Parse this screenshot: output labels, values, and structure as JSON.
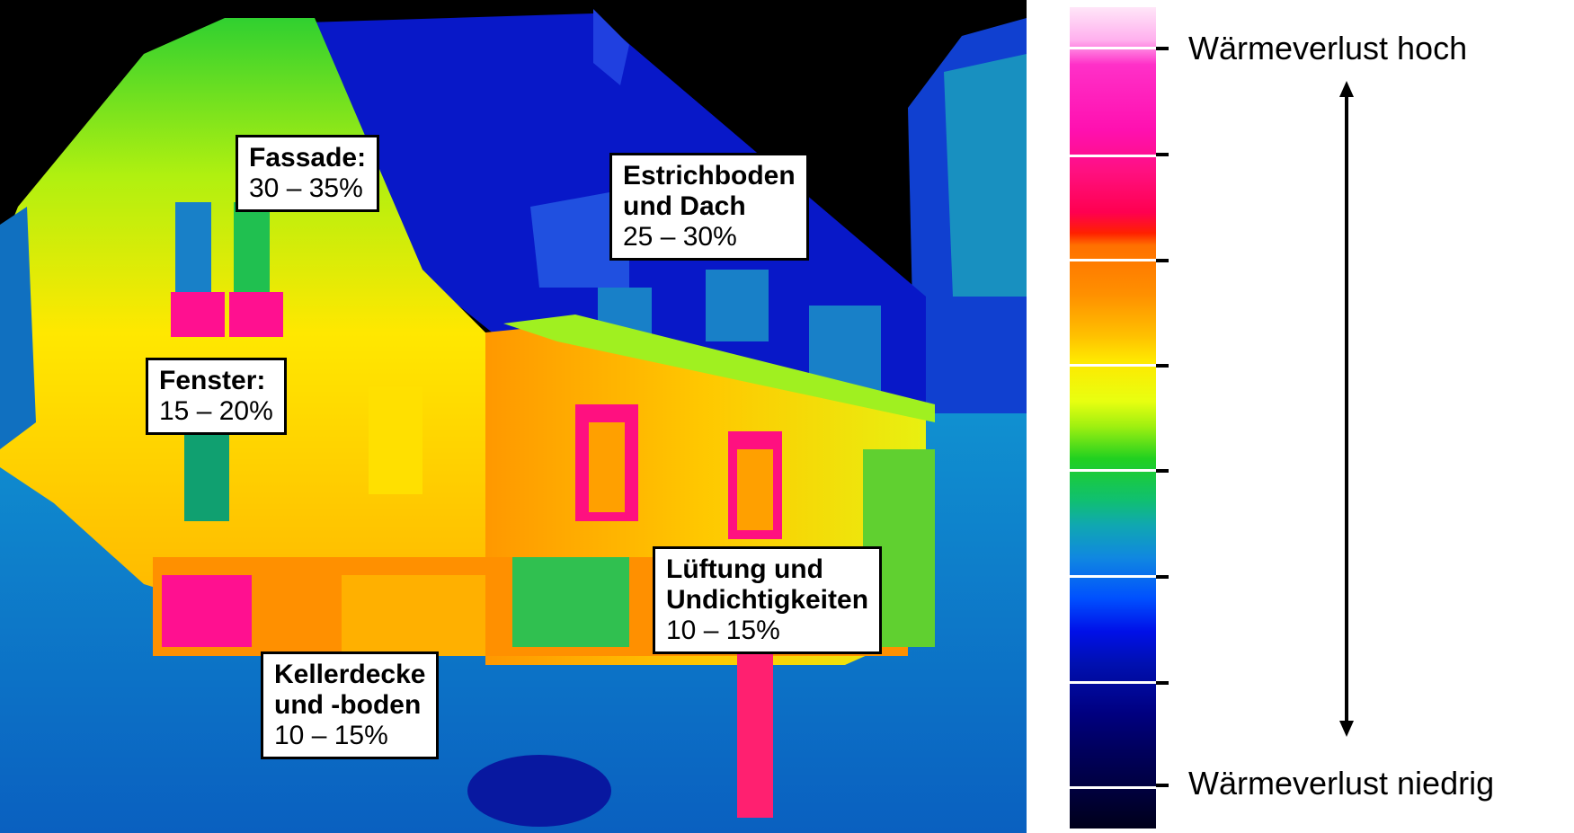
{
  "image": {
    "subject": "thermal-image-house",
    "palette": [
      "#000000",
      "#0010c0",
      "#1088e0",
      "#10c040",
      "#a0f010",
      "#ffe800",
      "#ff9000",
      "#ff1060"
    ]
  },
  "callouts": {
    "fassade": {
      "title": "Fassade:",
      "value": "30 – 35%"
    },
    "estrich": {
      "title_line1": "Estrichboden",
      "title_line2": "und Dach",
      "value": "25 – 30%"
    },
    "fenster": {
      "title": "Fenster:",
      "value": "15 – 20%"
    },
    "lueftung": {
      "title_line1": "Lüftung und",
      "title_line2": "Undichtigkeiten",
      "value": "10 – 15%"
    },
    "keller": {
      "title_line1": "Kellerdecke",
      "title_line2": "und -boden",
      "value": "10 – 15%"
    }
  },
  "scale": {
    "label_high": "Wärmeverlust hoch",
    "label_low": "Wärmeverlust niedrig",
    "arrow_color": "#000000"
  }
}
